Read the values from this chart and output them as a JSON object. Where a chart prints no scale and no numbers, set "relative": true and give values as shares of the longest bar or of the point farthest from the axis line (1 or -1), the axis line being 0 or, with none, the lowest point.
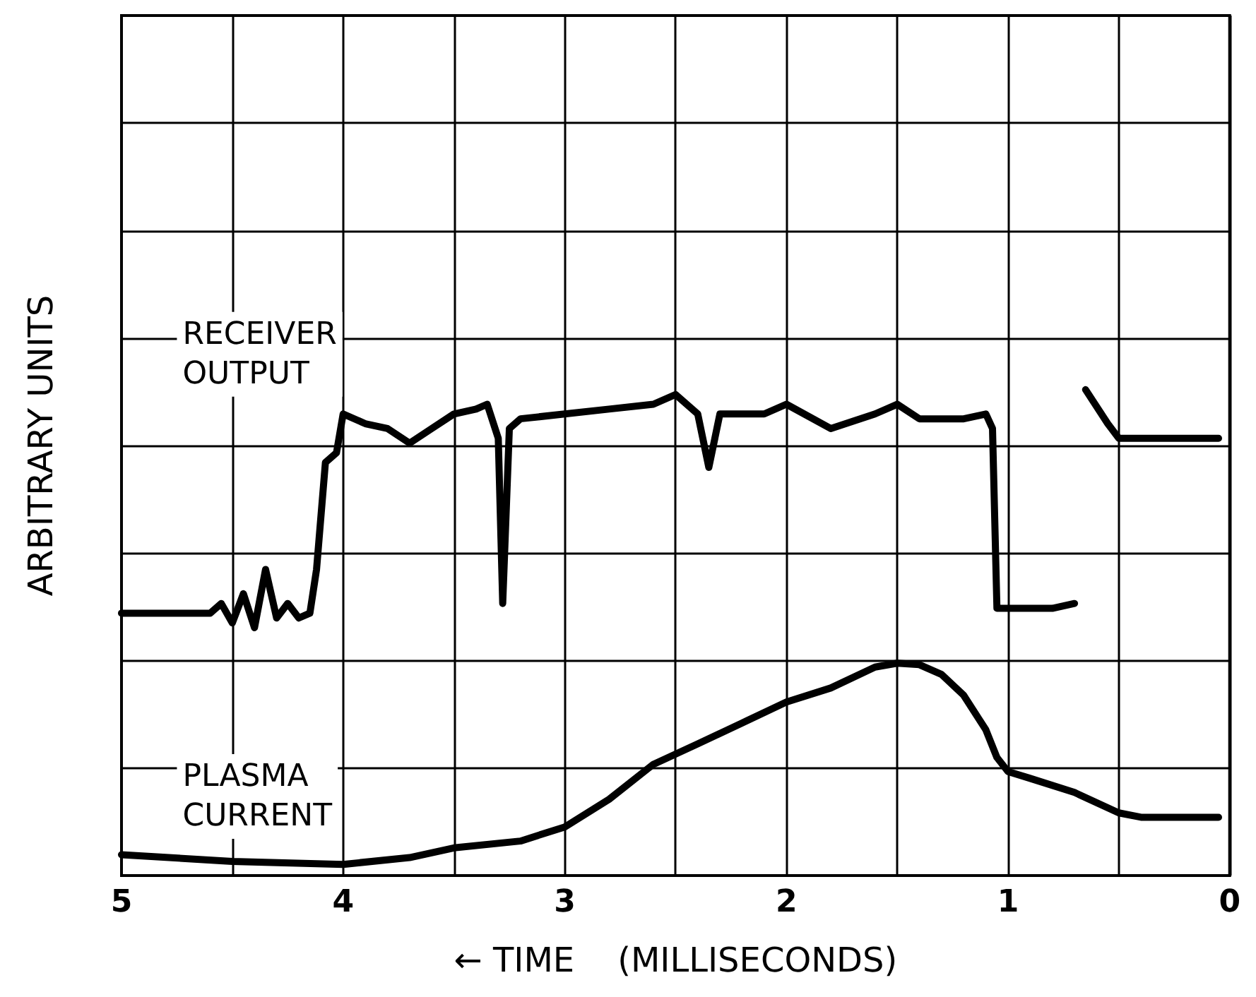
{
  "chart_data": {
    "type": "line",
    "relative": true,
    "xlabel": "← TIME    (MILLISECONDS)",
    "ylabel": "ARBITRARY UNITS",
    "xlim": [
      5,
      0
    ],
    "xticks": [
      5,
      {
        "value": 4.5,
        "label": null
      },
      4,
      {
        "value": 3.5,
        "label": null
      },
      3,
      {
        "value": 2.5,
        "label": null
      },
      2,
      {
        "value": 1.5,
        "label": null
      },
      1,
      {
        "value": 0.5,
        "label": null
      },
      0
    ],
    "grid": true,
    "legend": false,
    "marker": "none",
    "line_style": "solid",
    "series": [
      {
        "name": "RECEIVER OUTPUT",
        "color": "#000000",
        "x": [
          5,
          4.6,
          4.55,
          4.5,
          4.45,
          4.4,
          4.35,
          4.3,
          4.25,
          4.2,
          4.15,
          4.12,
          4.08,
          4.03,
          4.0,
          3.9,
          3.8,
          3.7,
          3.6,
          3.5,
          3.4,
          3.35,
          3.3,
          3.28,
          3.25,
          3.2,
          3.0,
          2.8,
          2.6,
          2.5,
          2.4,
          2.35,
          2.3,
          2.1,
          2.0,
          1.8,
          1.6,
          1.5,
          1.4,
          1.2,
          1.1,
          1.07,
          1.05,
          0.8,
          0.7,
          0.68,
          0.65,
          0.55,
          0.5,
          0.4,
          0.05
        ],
        "values": [
          0.54,
          0.54,
          0.56,
          0.52,
          0.58,
          0.51,
          0.63,
          0.53,
          0.56,
          0.53,
          0.54,
          0.63,
          0.85,
          0.87,
          0.95,
          0.93,
          0.92,
          0.89,
          0.92,
          0.95,
          0.96,
          0.97,
          0.9,
          0.56,
          0.92,
          0.94,
          0.95,
          0.96,
          0.97,
          0.99,
          0.95,
          0.84,
          0.95,
          0.95,
          0.97,
          0.92,
          0.95,
          0.97,
          0.94,
          0.94,
          0.95,
          0.92,
          0.55,
          0.55,
          0.56,
          null,
          1.0,
          0.93,
          0.9,
          0.9,
          0.9
        ]
      },
      {
        "name": "PLASMA CURRENT",
        "color": "#000000",
        "x": [
          5,
          4.5,
          4.0,
          3.7,
          3.5,
          3.2,
          3.0,
          2.8,
          2.6,
          2.4,
          2.2,
          2.0,
          1.8,
          1.6,
          1.5,
          1.4,
          1.3,
          1.2,
          1.1,
          1.05,
          1.0,
          0.9,
          0.7,
          0.5,
          0.4,
          0.05
        ],
        "values": [
          0.043,
          0.029,
          0.023,
          0.037,
          0.057,
          0.071,
          0.1,
          0.157,
          0.229,
          0.271,
          0.314,
          0.357,
          0.386,
          0.429,
          0.437,
          0.434,
          0.414,
          0.371,
          0.3,
          0.243,
          0.214,
          0.2,
          0.171,
          0.129,
          0.12,
          0.12
        ]
      }
    ]
  }
}
